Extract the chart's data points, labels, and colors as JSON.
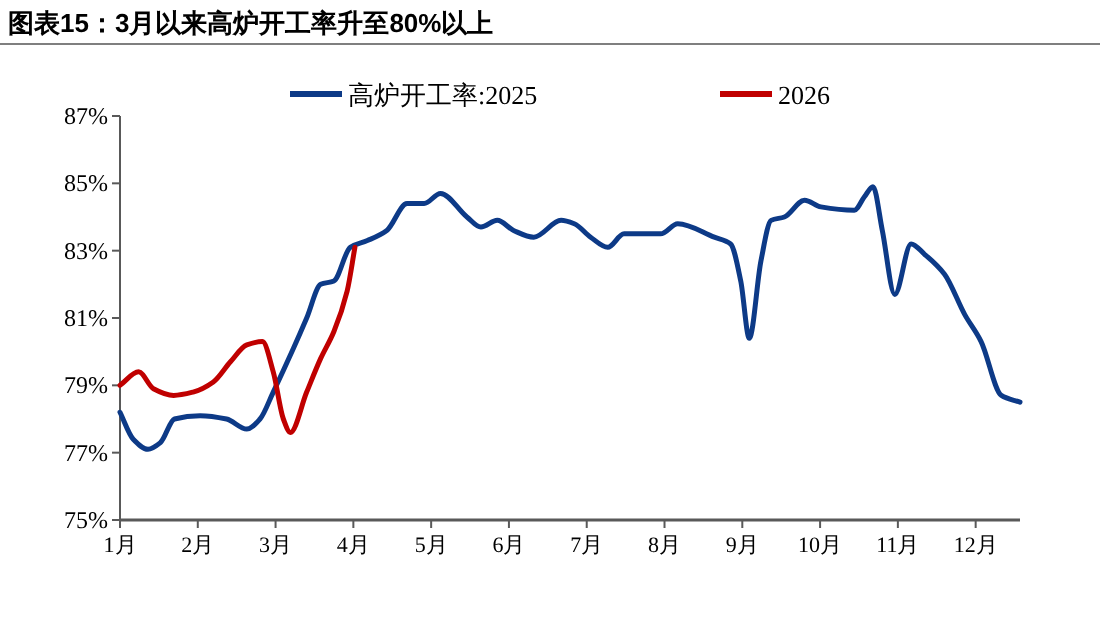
{
  "chart_data": {
    "type": "line",
    "title": "图表15：3月以来高炉开工率升至80%以上",
    "series": [
      {
        "name": "高炉开工率:2025",
        "color": "#0d3a87",
        "x": [
          1.0,
          1.17,
          1.36,
          1.52,
          1.7,
          2.03,
          2.37,
          2.63,
          2.8,
          2.97,
          3.23,
          3.4,
          3.58,
          3.75,
          3.96,
          4.18,
          4.43,
          4.69,
          4.91,
          5.12,
          5.46,
          5.64,
          5.85,
          6.06,
          6.32,
          6.67,
          6.84,
          7.05,
          7.27,
          7.48,
          7.95,
          8.17,
          8.64,
          8.85,
          8.98,
          9.09,
          9.24,
          9.37,
          9.54,
          9.8,
          10.01,
          10.44,
          10.57,
          10.68,
          10.8,
          10.96,
          11.17,
          11.34,
          11.6,
          11.86,
          12.07,
          12.33,
          12.57
        ],
        "values": [
          78.2,
          77.4,
          77.1,
          77.3,
          78.0,
          78.1,
          78.0,
          77.7,
          78.0,
          78.8,
          80.1,
          81.0,
          82.0,
          82.1,
          83.1,
          83.3,
          83.6,
          84.4,
          84.4,
          84.7,
          84.0,
          83.7,
          83.9,
          83.6,
          83.4,
          83.9,
          83.8,
          83.4,
          83.1,
          83.5,
          83.5,
          83.8,
          83.4,
          83.2,
          82.1,
          80.4,
          82.7,
          83.9,
          84.0,
          84.5,
          84.3,
          84.2,
          84.6,
          84.9,
          83.6,
          81.7,
          83.2,
          82.9,
          82.3,
          81.1,
          80.3,
          78.7,
          78.5
        ]
      },
      {
        "name": "2026",
        "color": "#c00000",
        "x": [
          1.0,
          1.24,
          1.43,
          1.69,
          1.94,
          2.2,
          2.42,
          2.63,
          2.83,
          2.97,
          3.1,
          3.19,
          3.4,
          3.58,
          3.75,
          3.92,
          4.02
        ],
        "values": [
          79.0,
          79.4,
          78.9,
          78.7,
          78.8,
          79.1,
          79.7,
          80.2,
          80.3,
          79.4,
          78.0,
          77.6,
          78.8,
          79.8,
          80.6,
          81.8,
          83.1
        ]
      }
    ],
    "xlim": [
      1,
      12.57
    ],
    "xticks": [
      {
        "value": 1,
        "label": "1月"
      },
      {
        "value": 2,
        "label": "2月"
      },
      {
        "value": 3,
        "label": "3月"
      },
      {
        "value": 4,
        "label": "4月"
      },
      {
        "value": 5,
        "label": "5月"
      },
      {
        "value": 6,
        "label": "6月"
      },
      {
        "value": 7,
        "label": "7月"
      },
      {
        "value": 8,
        "label": "8月"
      },
      {
        "value": 9,
        "label": "9月"
      },
      {
        "value": 10,
        "label": "10月"
      },
      {
        "value": 11,
        "label": "11月"
      },
      {
        "value": 12,
        "label": "12月"
      }
    ],
    "ylim": [
      75,
      87
    ],
    "yticks": [
      {
        "value": 75,
        "label": "75%"
      },
      {
        "value": 77,
        "label": "77%"
      },
      {
        "value": 79,
        "label": "79%"
      },
      {
        "value": 81,
        "label": "81%"
      },
      {
        "value": 83,
        "label": "83%"
      },
      {
        "value": 85,
        "label": "85%"
      },
      {
        "value": 87,
        "label": "87%"
      }
    ],
    "legend": "top",
    "grid": false,
    "marker": "none",
    "line_style": "solid"
  }
}
